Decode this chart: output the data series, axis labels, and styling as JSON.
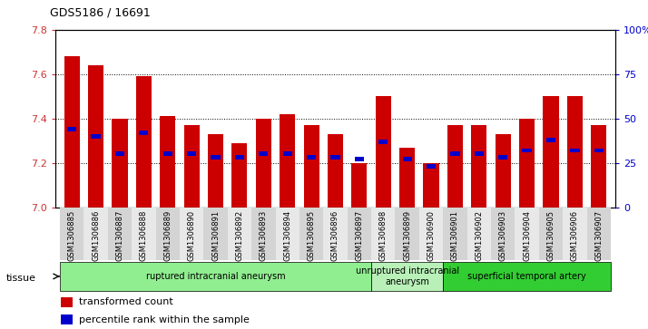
{
  "title": "GDS5186 / 16691",
  "samples": [
    "GSM1306885",
    "GSM1306886",
    "GSM1306887",
    "GSM1306888",
    "GSM1306889",
    "GSM1306890",
    "GSM1306891",
    "GSM1306892",
    "GSM1306893",
    "GSM1306894",
    "GSM1306895",
    "GSM1306896",
    "GSM1306897",
    "GSM1306898",
    "GSM1306899",
    "GSM1306900",
    "GSM1306901",
    "GSM1306902",
    "GSM1306903",
    "GSM1306904",
    "GSM1306905",
    "GSM1306906",
    "GSM1306907"
  ],
  "red_values": [
    7.68,
    7.64,
    7.4,
    7.59,
    7.41,
    7.37,
    7.33,
    7.29,
    7.4,
    7.42,
    7.37,
    7.33,
    7.2,
    7.5,
    7.27,
    7.2,
    7.37,
    7.37,
    7.33,
    7.4,
    7.5,
    7.5,
    7.37
  ],
  "blue_values": [
    44,
    40,
    30,
    42,
    30,
    30,
    28,
    28,
    30,
    30,
    28,
    28,
    27,
    37,
    27,
    23,
    30,
    30,
    28,
    32,
    38,
    32,
    32
  ],
  "baseline": 7.0,
  "ylim_left": [
    7.0,
    7.8
  ],
  "ylim_right": [
    0,
    100
  ],
  "yticks_left": [
    7.0,
    7.2,
    7.4,
    7.6,
    7.8
  ],
  "yticks_right": [
    0,
    25,
    50,
    75,
    100
  ],
  "ytick_labels_right": [
    "0",
    "25",
    "50",
    "75",
    "100%"
  ],
  "groups": [
    {
      "label": "ruptured intracranial aneurysm",
      "start": 0,
      "end": 13,
      "color": "#90EE90"
    },
    {
      "label": "unruptured intracranial\naneurysm",
      "start": 13,
      "end": 16,
      "color": "#b8f0b8"
    },
    {
      "label": "superficial temporal artery",
      "start": 16,
      "end": 23,
      "color": "#32CD32"
    }
  ],
  "bar_color": "#CC0000",
  "blue_color": "#0000CC",
  "bar_width": 0.65,
  "fig_bg": "#ffffff",
  "plot_bg": "#ffffff",
  "left_tick_color": "#CC3333",
  "right_tick_color": "#0000CC"
}
